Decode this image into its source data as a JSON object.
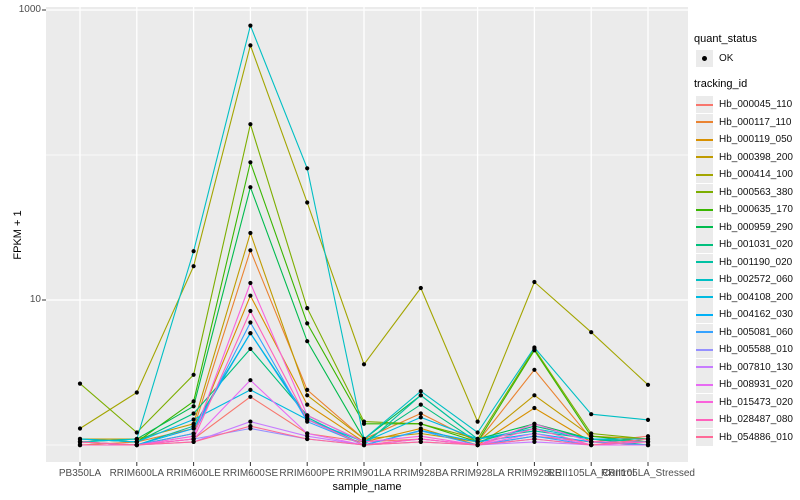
{
  "axes": {
    "y_title": "FPKM + 1",
    "x_title": "sample_name",
    "y_tick_labels": [
      "1000",
      "10"
    ]
  },
  "legend": {
    "quant_status": {
      "title": "quant_status",
      "items": [
        {
          "label": "OK",
          "marker": "black-point"
        }
      ]
    },
    "tracking_id": {
      "title": "tracking_id"
    }
  },
  "colors": {
    "panel_bg": "#ebebeb",
    "grid": "#ffffff",
    "tick_text": "#4d4d4d",
    "axis_title_text": "#000000",
    "legend_key_bg": "#ebebeb",
    "point": "#000000"
  },
  "chart_data": {
    "type": "line",
    "x_type": "categorical",
    "y_scale": "log10",
    "title": "",
    "xlabel": "sample_name",
    "ylabel": "FPKM + 1",
    "y_major_ticks": [
      1000,
      10
    ],
    "y_minor_gridlines": [
      100,
      1
    ],
    "ylim": [
      0.75,
      1030
    ],
    "grid": true,
    "legend_position": "right",
    "marker": "solid black point (quant_status OK)",
    "categories": [
      "PB350LA",
      "RRIM600LA",
      "RRIM600LE",
      "RRIM600SE",
      "RRIM600PE",
      "RRIM901LA",
      "RRIM928BA",
      "RRIM928LA",
      "RRIM928LE",
      "RRII105LA_Control",
      "RRII105LA_Stressed"
    ],
    "series": [
      {
        "name": "Hb_000045_110",
        "color": "#F8766D",
        "values": [
          1.05,
          1.0,
          1.1,
          2.15,
          1.2,
          1.05,
          1.1,
          1.0,
          1.15,
          1.05,
          1.15
        ]
      },
      {
        "name": "Hb_000117_110",
        "color": "#EA8331",
        "values": [
          1.0,
          1.05,
          1.3,
          22,
          2.4,
          1.1,
          1.65,
          1.05,
          3.3,
          1.1,
          1.05
        ]
      },
      {
        "name": "Hb_000119_050",
        "color": "#D89000",
        "values": [
          1.0,
          1.0,
          1.2,
          10.7,
          1.9,
          1.05,
          1.3,
          1.0,
          1.8,
          1.05,
          1.0
        ]
      },
      {
        "name": "Hb_000398_200",
        "color": "#C09B00",
        "values": [
          1.1,
          1.1,
          1.4,
          29,
          2.2,
          1.1,
          1.2,
          1.05,
          2.2,
          1.15,
          1.1
        ]
      },
      {
        "name": "Hb_000414_100",
        "color": "#A3A500",
        "values": [
          1.3,
          2.3,
          17.1,
          570,
          47,
          3.6,
          12.1,
          1.45,
          13.3,
          6.0,
          2.6
        ]
      },
      {
        "name": "Hb_000563_380",
        "color": "#7CAE00",
        "values": [
          2.65,
          1.22,
          3.05,
          163,
          8.8,
          1.45,
          1.4,
          1.1,
          4.6,
          1.2,
          1.1
        ]
      },
      {
        "name": "Hb_000635_170",
        "color": "#39B600",
        "values": [
          1.1,
          1.05,
          2.0,
          89,
          6.9,
          1.4,
          1.4,
          1.05,
          4.5,
          1.15,
          1.05
        ]
      },
      {
        "name": "Hb_000959_290",
        "color": "#00BB4E",
        "values": [
          1.05,
          1.1,
          1.85,
          60,
          5.2,
          1.1,
          2.2,
          1.1,
          1.4,
          1.1,
          1.05
        ]
      },
      {
        "name": "Hb_001031_020",
        "color": "#00BF7D",
        "values": [
          1.1,
          1.05,
          1.65,
          4.6,
          1.6,
          1.05,
          1.9,
          1.05,
          1.35,
          1.1,
          1.0
        ]
      },
      {
        "name": "Hb_001190_020",
        "color": "#00C1A3",
        "values": [
          1.05,
          1.0,
          1.35,
          5.9,
          1.55,
          1.0,
          2.2,
          1.1,
          1.25,
          1.1,
          1.05
        ]
      },
      {
        "name": "Hb_002572_060",
        "color": "#00BFC4",
        "values": [
          1.05,
          1.1,
          21.7,
          780,
          81,
          1.1,
          2.35,
          1.22,
          4.7,
          1.63,
          1.49
        ]
      },
      {
        "name": "Hb_004108_200",
        "color": "#00BAE0",
        "values": [
          1.1,
          1.05,
          1.5,
          2.4,
          1.5,
          1.05,
          1.55,
          1.1,
          1.3,
          1.1,
          1.1
        ]
      },
      {
        "name": "Hb_004162_030",
        "color": "#00B0F6",
        "values": [
          1.0,
          1.0,
          1.3,
          5.9,
          1.5,
          1.0,
          1.26,
          1.05,
          1.2,
          1.05,
          1.0
        ]
      },
      {
        "name": "Hb_005081_060",
        "color": "#35A2FF",
        "values": [
          1.05,
          1.0,
          1.2,
          7.0,
          1.45,
          1.0,
          1.25,
          1.0,
          1.15,
          1.0,
          1.0
        ]
      },
      {
        "name": "Hb_005588_010",
        "color": "#9590FF",
        "values": [
          1.0,
          1.0,
          1.1,
          1.3,
          1.1,
          1.0,
          1.05,
          1.0,
          1.1,
          1.0,
          1.0
        ]
      },
      {
        "name": "Hb_007810_130",
        "color": "#C77CFF",
        "values": [
          1.0,
          1.0,
          1.05,
          1.45,
          1.15,
          1.0,
          1.1,
          1.0,
          1.05,
          1.0,
          1.0
        ]
      },
      {
        "name": "Hb_008931_020",
        "color": "#E76BF3",
        "values": [
          1.0,
          1.0,
          1.1,
          2.8,
          1.2,
          1.0,
          1.1,
          1.0,
          1.2,
          1.0,
          1.0
        ]
      },
      {
        "name": "Hb_015473_020",
        "color": "#FA62DB",
        "values": [
          1.05,
          1.0,
          1.15,
          13.1,
          1.6,
          1.05,
          1.15,
          1.0,
          1.4,
          1.05,
          1.05
        ]
      },
      {
        "name": "Hb_028487_080",
        "color": "#FF62BC",
        "values": [
          1.0,
          1.0,
          1.1,
          8.4,
          1.5,
          1.0,
          1.1,
          1.0,
          1.3,
          1.0,
          1.05
        ]
      },
      {
        "name": "Hb_054886_010",
        "color": "#FF6A98",
        "values": [
          1.05,
          1.0,
          1.05,
          1.35,
          1.1,
          1.0,
          1.05,
          1.0,
          1.1,
          1.0,
          1.1
        ]
      }
    ]
  }
}
